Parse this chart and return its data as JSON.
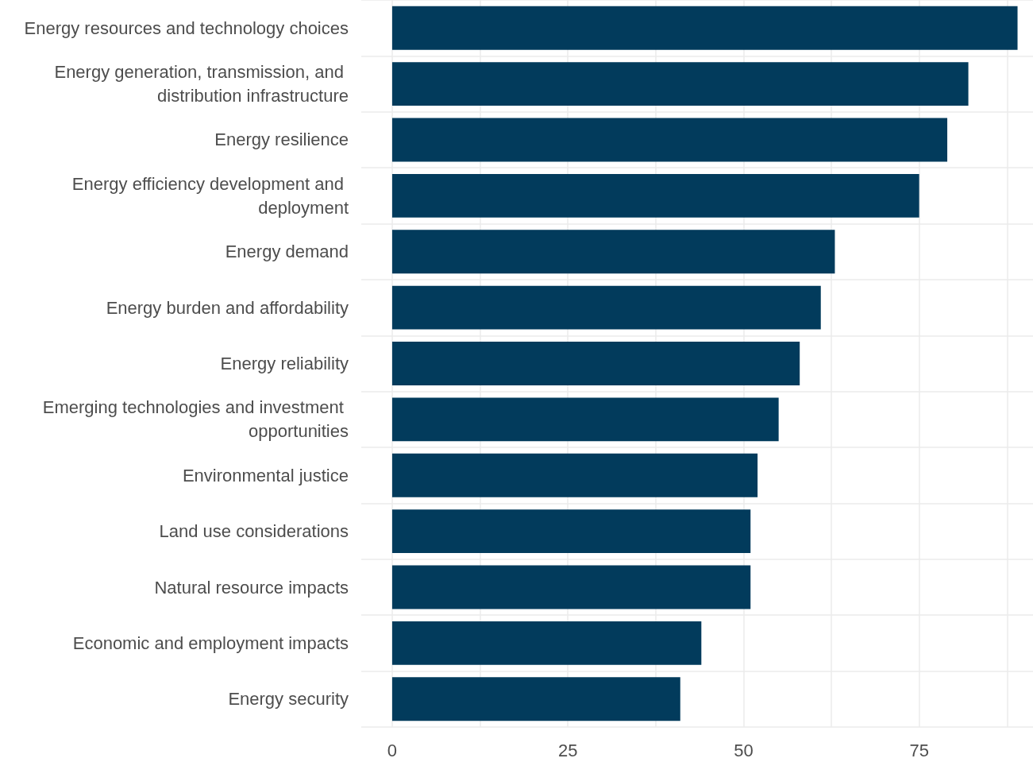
{
  "chart_data": {
    "type": "bar",
    "orientation": "horizontal",
    "categories": [
      "Energy resources and technology choices",
      "Energy generation, transmission, and distribution infrastructure",
      "Energy resilience",
      "Energy efficiency development and deployment",
      "Energy demand",
      "Energy burden and affordability",
      "Energy reliability",
      "Emerging technologies and investment opportunities",
      "Environmental justice",
      "Land use considerations",
      "Natural resource impacts",
      "Economic and employment impacts",
      "Energy security"
    ],
    "values": [
      89,
      82,
      79,
      75,
      63,
      61,
      58,
      55,
      52,
      51,
      51,
      44,
      41
    ],
    "color": "#023b5c",
    "xlim": [
      -4.4,
      91.2
    ],
    "xticks": [
      0,
      {
        "value": 12.5,
        "label": null
      },
      25,
      {
        "value": 37.5,
        "label": null
      },
      50,
      {
        "value": 62.5,
        "label": null
      },
      75,
      {
        "value": 87.5,
        "label": null
      }
    ],
    "grid": true
  }
}
